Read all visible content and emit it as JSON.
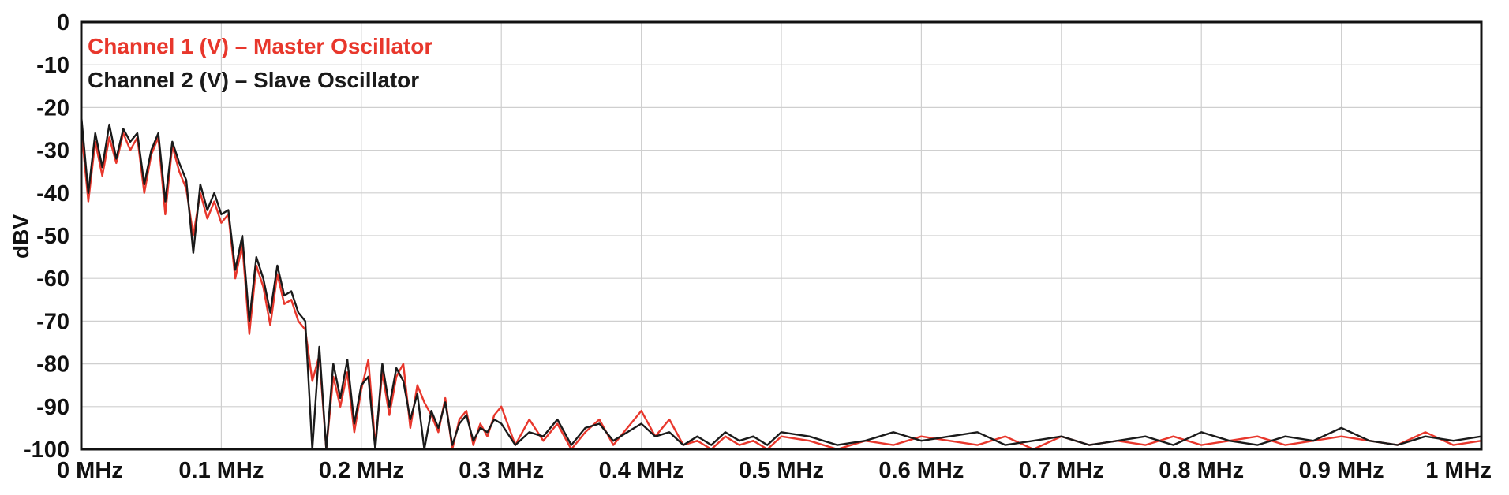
{
  "chart_data": {
    "type": "line",
    "title": "",
    "xlabel": "",
    "ylabel": "dBV",
    "xlim": [
      0,
      1
    ],
    "ylim": [
      -100,
      0
    ],
    "x_unit": "MHz",
    "grid": true,
    "legend_position": "top-left",
    "x_ticks": [
      "0 MHz",
      "0.1 MHz",
      "0.2 MHz",
      "0.3 MHz",
      "0.4 MHz",
      "0.5 MHz",
      "0.6 MHz",
      "0.7 MHz",
      "0.8 MHz",
      "0.9 MHz",
      "1 MHz"
    ],
    "y_ticks": [
      "0",
      "-10",
      "-20",
      "-30",
      "-40",
      "-50",
      "-60",
      "-70",
      "-80",
      "-90",
      "-100"
    ],
    "series": [
      {
        "name": "Channel 1 (V) – Master Oscillator",
        "color": "#e8372c",
        "x": [
          0,
          0.005,
          0.01,
          0.015,
          0.02,
          0.025,
          0.03,
          0.035,
          0.04,
          0.045,
          0.05,
          0.055,
          0.06,
          0.065,
          0.07,
          0.075,
          0.08,
          0.085,
          0.09,
          0.095,
          0.1,
          0.105,
          0.11,
          0.115,
          0.12,
          0.125,
          0.13,
          0.135,
          0.14,
          0.145,
          0.15,
          0.155,
          0.16,
          0.165,
          0.17,
          0.175,
          0.18,
          0.185,
          0.19,
          0.195,
          0.2,
          0.205,
          0.21,
          0.215,
          0.22,
          0.225,
          0.23,
          0.235,
          0.24,
          0.245,
          0.25,
          0.255,
          0.26,
          0.265,
          0.27,
          0.275,
          0.28,
          0.285,
          0.29,
          0.295,
          0.3,
          0.31,
          0.32,
          0.33,
          0.34,
          0.35,
          0.36,
          0.37,
          0.38,
          0.39,
          0.4,
          0.41,
          0.42,
          0.43,
          0.44,
          0.45,
          0.46,
          0.47,
          0.48,
          0.49,
          0.5,
          0.52,
          0.54,
          0.56,
          0.58,
          0.6,
          0.62,
          0.64,
          0.66,
          0.68,
          0.7,
          0.72,
          0.74,
          0.76,
          0.78,
          0.8,
          0.82,
          0.84,
          0.86,
          0.88,
          0.9,
          0.92,
          0.94,
          0.96,
          0.98,
          1.0
        ],
        "y": [
          -25,
          -42,
          -28,
          -36,
          -27,
          -33,
          -26,
          -30,
          -27,
          -40,
          -31,
          -27,
          -45,
          -29,
          -35,
          -39,
          -50,
          -40,
          -46,
          -42,
          -47,
          -45,
          -60,
          -52,
          -73,
          -57,
          -62,
          -71,
          -59,
          -66,
          -65,
          -70,
          -72,
          -84,
          -78,
          -100,
          -83,
          -90,
          -82,
          -96,
          -86,
          -79,
          -99,
          -82,
          -92,
          -83,
          -80,
          -95,
          -85,
          -89,
          -92,
          -96,
          -88,
          -100,
          -93,
          -91,
          -99,
          -94,
          -97,
          -92,
          -90,
          -99,
          -93,
          -98,
          -94,
          -100,
          -96,
          -93,
          -99,
          -95,
          -91,
          -97,
          -93,
          -99,
          -98,
          -100,
          -97,
          -99,
          -98,
          -100,
          -97,
          -98,
          -100,
          -98,
          -99,
          -97,
          -98,
          -99,
          -97,
          -100,
          -97,
          -99,
          -98,
          -99,
          -97,
          -99,
          -98,
          -97,
          -99,
          -98,
          -97,
          -98,
          -99,
          -96,
          -99,
          -98
        ]
      },
      {
        "name": "Channel 2 (V) – Slave Oscillator",
        "color": "#1a1a1a",
        "x": [
          0,
          0.005,
          0.01,
          0.015,
          0.02,
          0.025,
          0.03,
          0.035,
          0.04,
          0.045,
          0.05,
          0.055,
          0.06,
          0.065,
          0.07,
          0.075,
          0.08,
          0.085,
          0.09,
          0.095,
          0.1,
          0.105,
          0.11,
          0.115,
          0.12,
          0.125,
          0.13,
          0.135,
          0.14,
          0.145,
          0.15,
          0.155,
          0.16,
          0.165,
          0.17,
          0.175,
          0.18,
          0.185,
          0.19,
          0.195,
          0.2,
          0.205,
          0.21,
          0.215,
          0.22,
          0.225,
          0.23,
          0.235,
          0.24,
          0.245,
          0.25,
          0.255,
          0.26,
          0.265,
          0.27,
          0.275,
          0.28,
          0.285,
          0.29,
          0.295,
          0.3,
          0.31,
          0.32,
          0.33,
          0.34,
          0.35,
          0.36,
          0.37,
          0.38,
          0.39,
          0.4,
          0.41,
          0.42,
          0.43,
          0.44,
          0.45,
          0.46,
          0.47,
          0.48,
          0.49,
          0.5,
          0.52,
          0.54,
          0.56,
          0.58,
          0.6,
          0.62,
          0.64,
          0.66,
          0.68,
          0.7,
          0.72,
          0.74,
          0.76,
          0.78,
          0.8,
          0.82,
          0.84,
          0.86,
          0.88,
          0.9,
          0.92,
          0.94,
          0.96,
          0.98,
          1.0
        ],
        "y": [
          -22,
          -40,
          -26,
          -34,
          -24,
          -32,
          -25,
          -28,
          -26,
          -38,
          -30,
          -26,
          -42,
          -28,
          -33,
          -37,
          -54,
          -38,
          -44,
          -40,
          -45,
          -44,
          -58,
          -50,
          -70,
          -55,
          -60,
          -68,
          -57,
          -64,
          -63,
          -68,
          -70,
          -100,
          -76,
          -100,
          -80,
          -88,
          -79,
          -94,
          -85,
          -83,
          -100,
          -80,
          -90,
          -81,
          -84,
          -93,
          -87,
          -100,
          -91,
          -95,
          -89,
          -99,
          -94,
          -92,
          -98,
          -95,
          -96,
          -93,
          -94,
          -99,
          -96,
          -97,
          -93,
          -99,
          -95,
          -94,
          -98,
          -96,
          -94,
          -97,
          -96,
          -99,
          -97,
          -99,
          -96,
          -98,
          -97,
          -99,
          -96,
          -97,
          -99,
          -98,
          -96,
          -98,
          -97,
          -96,
          -99,
          -98,
          -97,
          -99,
          -98,
          -97,
          -99,
          -96,
          -98,
          -99,
          -97,
          -98,
          -95,
          -98,
          -99,
          -97,
          -98,
          -97
        ]
      }
    ]
  }
}
